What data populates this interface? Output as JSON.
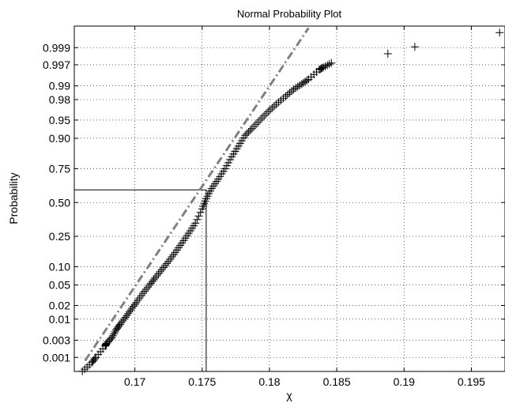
{
  "chart_data": {
    "type": "scatter",
    "title": "Normal Probability Plot",
    "xlabel": "χ",
    "ylabel": "Probability",
    "xlim": [
      0.1655,
      0.1975
    ],
    "x_ticks": [
      {
        "value": 0.17,
        "label": "0.17"
      },
      {
        "value": 0.175,
        "label": "0.175"
      },
      {
        "value": 0.18,
        "label": "0.18"
      },
      {
        "value": 0.185,
        "label": "0.185"
      },
      {
        "value": 0.19,
        "label": "0.19"
      },
      {
        "value": 0.195,
        "label": "0.195"
      }
    ],
    "y_scale": "normal-probability",
    "y_ticks": [
      {
        "value": 0.001,
        "label": "0.001"
      },
      {
        "value": 0.003,
        "label": "0.003"
      },
      {
        "value": 0.01,
        "label": "0.01"
      },
      {
        "value": 0.02,
        "label": "0.02"
      },
      {
        "value": 0.05,
        "label": "0.05"
      },
      {
        "value": 0.1,
        "label": "0.10"
      },
      {
        "value": 0.25,
        "label": "0.25"
      },
      {
        "value": 0.5,
        "label": "0.50"
      },
      {
        "value": 0.75,
        "label": "0.75"
      },
      {
        "value": 0.9,
        "label": "0.90"
      },
      {
        "value": 0.95,
        "label": "0.95"
      },
      {
        "value": 0.98,
        "label": "0.98"
      },
      {
        "value": 0.99,
        "label": "0.99"
      },
      {
        "value": 0.997,
        "label": "0.997"
      },
      {
        "value": 0.999,
        "label": "0.999"
      }
    ],
    "grid": true,
    "marker": "+",
    "series": [
      {
        "points": [
          [
            0.1661,
            0.00038
          ],
          [
            0.1668,
            0.0007
          ],
          [
            0.1671,
            0.001
          ],
          [
            0.1678,
            0.0021
          ],
          [
            0.1679,
            0.0025
          ],
          [
            0.1683,
            0.0035
          ],
          [
            0.1686,
            0.0055
          ],
          [
            0.1689,
            0.0075
          ],
          [
            0.1693,
            0.011
          ],
          [
            0.1697,
            0.016
          ],
          [
            0.1701,
            0.023
          ],
          [
            0.1706,
            0.035
          ],
          [
            0.1711,
            0.05
          ],
          [
            0.1715,
            0.066
          ],
          [
            0.172,
            0.09
          ],
          [
            0.1725,
            0.12
          ],
          [
            0.173,
            0.16
          ],
          [
            0.1735,
            0.21
          ],
          [
            0.174,
            0.27
          ],
          [
            0.1745,
            0.34
          ],
          [
            0.175,
            0.45
          ],
          [
            0.1753,
            0.53
          ],
          [
            0.1757,
            0.61
          ],
          [
            0.1762,
            0.68
          ],
          [
            0.1767,
            0.75
          ],
          [
            0.1772,
            0.82
          ],
          [
            0.1777,
            0.87
          ],
          [
            0.1782,
            0.91
          ],
          [
            0.1787,
            0.93
          ],
          [
            0.1793,
            0.95
          ],
          [
            0.1799,
            0.965
          ],
          [
            0.1805,
            0.975
          ],
          [
            0.1812,
            0.983
          ],
          [
            0.1818,
            0.988
          ],
          [
            0.1824,
            0.991
          ],
          [
            0.1829,
            0.993
          ],
          [
            0.1837,
            0.996
          ],
          [
            0.184,
            0.9965
          ],
          [
            0.1846,
            0.9973
          ],
          [
            0.1888,
            0.9985
          ],
          [
            0.1908,
            0.99905
          ],
          [
            0.1971,
            0.99965
          ]
        ]
      }
    ],
    "fit_line": {
      "style": "dash-dot",
      "color": "#808080",
      "x": [
        0.1663,
        0.1829
      ],
      "y": [
        0.0008,
        0.99975
      ]
    },
    "reference_lines": {
      "x": 0.1753,
      "y": 0.6
    }
  }
}
